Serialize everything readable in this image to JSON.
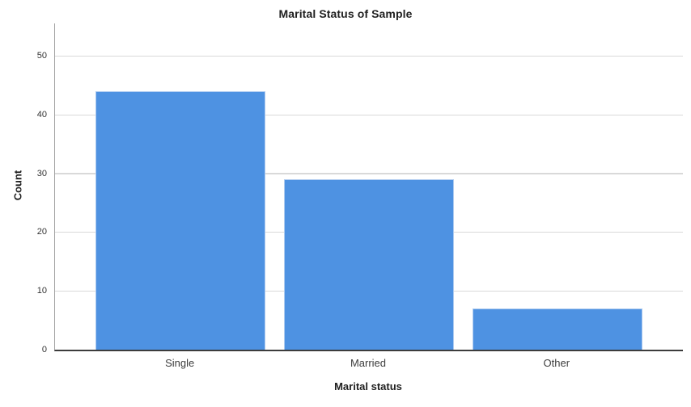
{
  "chart_data": {
    "type": "bar",
    "title": "Marital Status of Sample",
    "xlabel": "Marital status",
    "ylabel": "Count",
    "categories": [
      "Single",
      "Married",
      "Other"
    ],
    "values": [
      44,
      29,
      7
    ],
    "yticks": [
      0,
      10,
      20,
      30,
      40,
      50
    ],
    "ylim": [
      0,
      55.6
    ],
    "grid": "horizontal",
    "legend_position": "none",
    "colors": {
      "bar_fill": "#4e92e2",
      "bar_border": "#aecbf0",
      "gridline": "#d9d9d9",
      "y_axis_line": "#a3a3a3",
      "baseline": "#3c3c3c",
      "background": "#ffffff",
      "text": "#1f1f1f"
    }
  }
}
